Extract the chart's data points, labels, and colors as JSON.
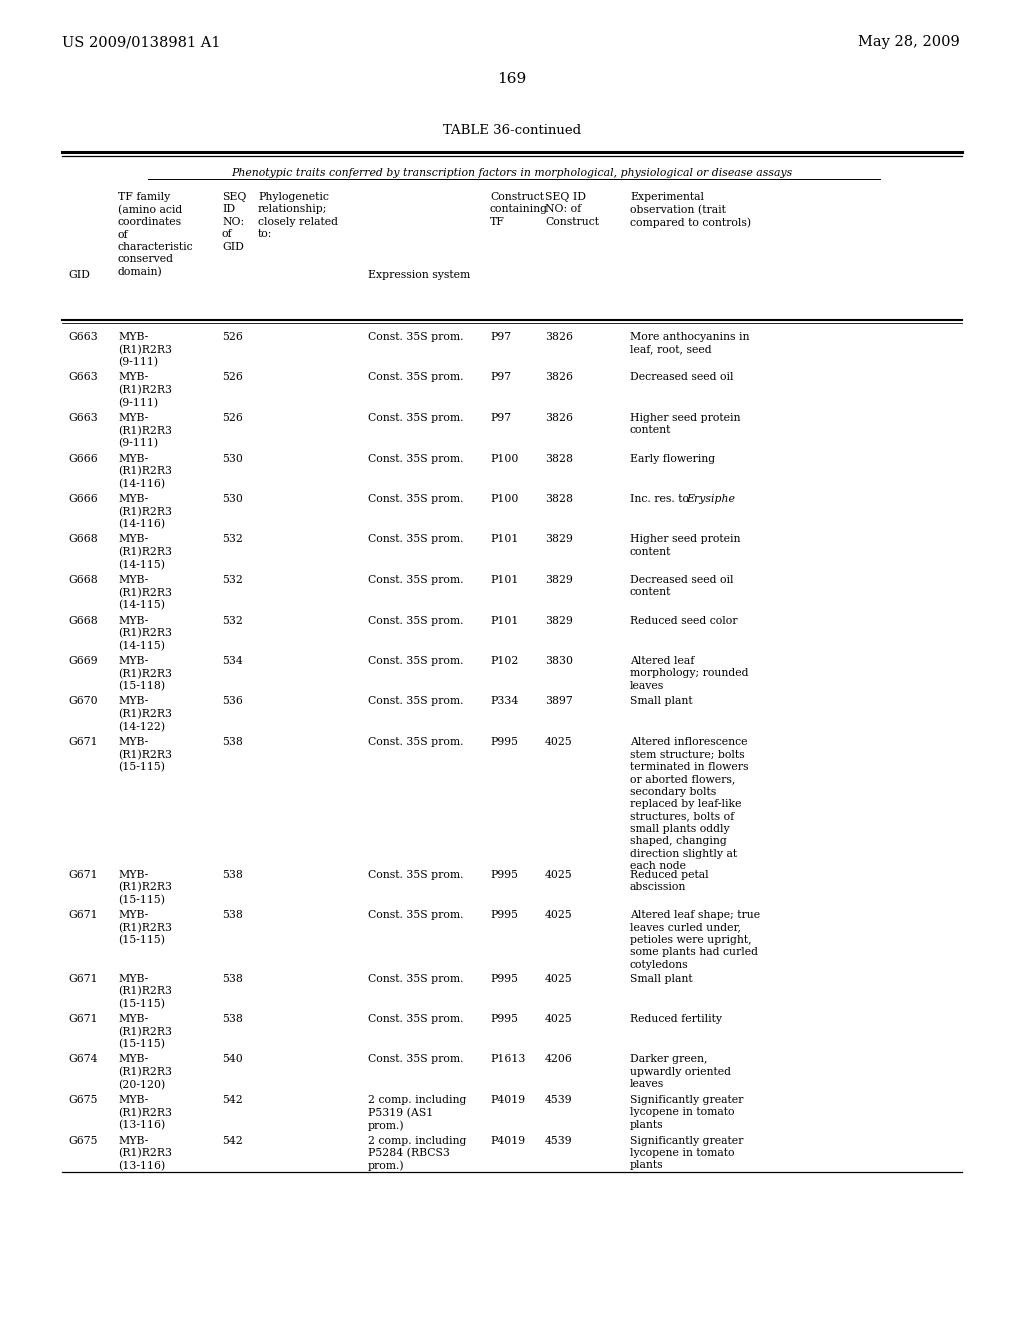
{
  "page_number": "169",
  "patent_left": "US 2009/0138981 A1",
  "patent_right": "May 28, 2009",
  "table_title": "TABLE 36-continued",
  "subtitle": "Phenotypic traits conferred by transcription factors in morphological, physiological or disease assays",
  "background_color": "#ffffff",
  "text_color": "#000000",
  "font_size": 7.8,
  "col_x": {
    "gid": 68,
    "tf": 118,
    "seq": 222,
    "phylo": 258,
    "expr": 368,
    "ctf": 490,
    "seqc": 545,
    "obs": 630
  },
  "rows": [
    {
      "gid": "G663",
      "tf": "MYB-\n(R1)R2R3\n(9-111)",
      "seq": "526",
      "expr": "Const. 35S prom.",
      "ctf": "P97",
      "seqc": "3826",
      "obs": "More anthocyanins in\nleaf, root, seed",
      "obs_italic": ""
    },
    {
      "gid": "G663",
      "tf": "MYB-\n(R1)R2R3\n(9-111)",
      "seq": "526",
      "expr": "Const. 35S prom.",
      "ctf": "P97",
      "seqc": "3826",
      "obs": "Decreased seed oil",
      "obs_italic": ""
    },
    {
      "gid": "G663",
      "tf": "MYB-\n(R1)R2R3\n(9-111)",
      "seq": "526",
      "expr": "Const. 35S prom.",
      "ctf": "P97",
      "seqc": "3826",
      "obs": "Higher seed protein\ncontent",
      "obs_italic": ""
    },
    {
      "gid": "G666",
      "tf": "MYB-\n(R1)R2R3\n(14-116)",
      "seq": "530",
      "expr": "Const. 35S prom.",
      "ctf": "P100",
      "seqc": "3828",
      "obs": "Early flowering",
      "obs_italic": ""
    },
    {
      "gid": "G666",
      "tf": "MYB-\n(R1)R2R3\n(14-116)",
      "seq": "530",
      "expr": "Const. 35S prom.",
      "ctf": "P100",
      "seqc": "3828",
      "obs": "Inc. res. to ",
      "obs_italic": "Erysiphe"
    },
    {
      "gid": "G668",
      "tf": "MYB-\n(R1)R2R3\n(14-115)",
      "seq": "532",
      "expr": "Const. 35S prom.",
      "ctf": "P101",
      "seqc": "3829",
      "obs": "Higher seed protein\ncontent",
      "obs_italic": ""
    },
    {
      "gid": "G668",
      "tf": "MYB-\n(R1)R2R3\n(14-115)",
      "seq": "532",
      "expr": "Const. 35S prom.",
      "ctf": "P101",
      "seqc": "3829",
      "obs": "Decreased seed oil\ncontent",
      "obs_italic": ""
    },
    {
      "gid": "G668",
      "tf": "MYB-\n(R1)R2R3\n(14-115)",
      "seq": "532",
      "expr": "Const. 35S prom.",
      "ctf": "P101",
      "seqc": "3829",
      "obs": "Reduced seed color",
      "obs_italic": ""
    },
    {
      "gid": "G669",
      "tf": "MYB-\n(R1)R2R3\n(15-118)",
      "seq": "534",
      "expr": "Const. 35S prom.",
      "ctf": "P102",
      "seqc": "3830",
      "obs": "Altered leaf\nmorphology; rounded\nleaves",
      "obs_italic": ""
    },
    {
      "gid": "G670",
      "tf": "MYB-\n(R1)R2R3\n(14-122)",
      "seq": "536",
      "expr": "Const. 35S prom.",
      "ctf": "P334",
      "seqc": "3897",
      "obs": "Small plant",
      "obs_italic": ""
    },
    {
      "gid": "G671",
      "tf": "MYB-\n(R1)R2R3\n(15-115)",
      "seq": "538",
      "expr": "Const. 35S prom.",
      "ctf": "P995",
      "seqc": "4025",
      "obs": "Altered inflorescence\nstem structure; bolts\nterminated in flowers\nor aborted flowers,\nsecondary bolts\nreplaced by leaf-like\nstructures, bolts of\nsmall plants oddly\nshaped, changing\ndirection slightly at\neach node",
      "obs_italic": ""
    },
    {
      "gid": "G671",
      "tf": "MYB-\n(R1)R2R3\n(15-115)",
      "seq": "538",
      "expr": "Const. 35S prom.",
      "ctf": "P995",
      "seqc": "4025",
      "obs": "Reduced petal\nabscission",
      "obs_italic": ""
    },
    {
      "gid": "G671",
      "tf": "MYB-\n(R1)R2R3\n(15-115)",
      "seq": "538",
      "expr": "Const. 35S prom.",
      "ctf": "P995",
      "seqc": "4025",
      "obs": "Altered leaf shape; true\nleaves curled under,\npetioles were upright,\nsome plants had curled\ncotyledons",
      "obs_italic": ""
    },
    {
      "gid": "G671",
      "tf": "MYB-\n(R1)R2R3\n(15-115)",
      "seq": "538",
      "expr": "Const. 35S prom.",
      "ctf": "P995",
      "seqc": "4025",
      "obs": "Small plant",
      "obs_italic": ""
    },
    {
      "gid": "G671",
      "tf": "MYB-\n(R1)R2R3\n(15-115)",
      "seq": "538",
      "expr": "Const. 35S prom.",
      "ctf": "P995",
      "seqc": "4025",
      "obs": "Reduced fertility",
      "obs_italic": ""
    },
    {
      "gid": "G674",
      "tf": "MYB-\n(R1)R2R3\n(20-120)",
      "seq": "540",
      "expr": "Const. 35S prom.",
      "ctf": "P1613",
      "seqc": "4206",
      "obs": "Darker green,\nupwardly oriented\nleaves",
      "obs_italic": ""
    },
    {
      "gid": "G675",
      "tf": "MYB-\n(R1)R2R3\n(13-116)",
      "seq": "542",
      "expr": "2 comp. including\nP5319 (AS1\nprom.)",
      "ctf": "P4019",
      "seqc": "4539",
      "obs": "Significantly greater\nlycopene in tomato\nplants",
      "obs_italic": ""
    },
    {
      "gid": "G675",
      "tf": "MYB-\n(R1)R2R3\n(13-116)",
      "seq": "542",
      "expr": "2 comp. including\nP5284 (RBCS3\nprom.)",
      "ctf": "P4019",
      "seqc": "4539",
      "obs": "Significantly greater\nlycopene in tomato\nplants",
      "obs_italic": ""
    }
  ]
}
